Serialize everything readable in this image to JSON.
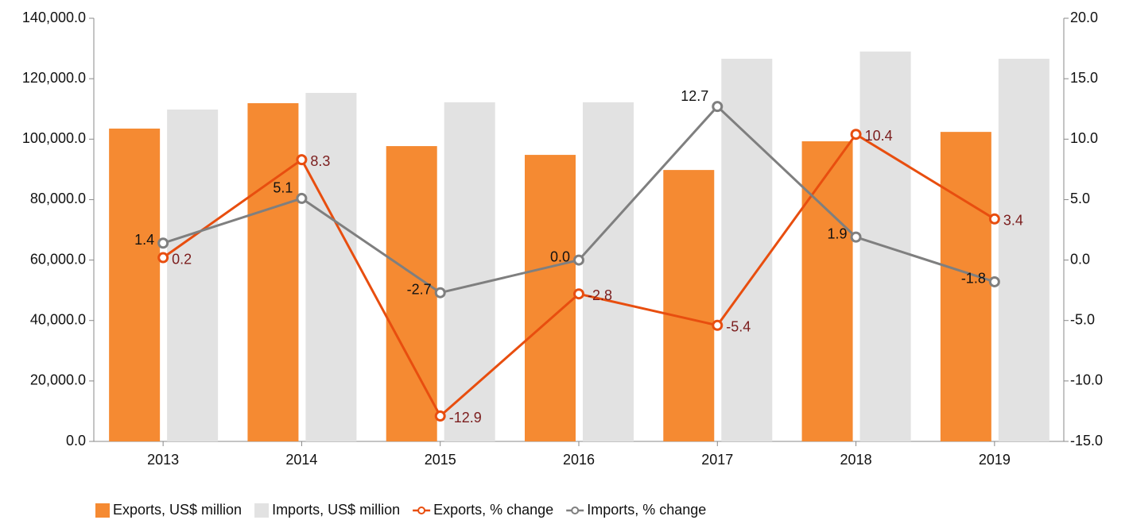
{
  "chart_data": {
    "type": "bar",
    "categories": [
      "2013",
      "2014",
      "2015",
      "2016",
      "2017",
      "2018",
      "2019"
    ],
    "series": [
      {
        "name": "Exports, US$ million",
        "type": "bar",
        "color": "#f58a32",
        "values": [
          103500,
          111900,
          97700,
          94800,
          89800,
          99300,
          102400
        ]
      },
      {
        "name": "Imports, US$ million",
        "type": "bar",
        "color": "#e2e2e2",
        "values": [
          109800,
          115300,
          112200,
          112200,
          126600,
          129000,
          126600
        ]
      },
      {
        "name": "Exports, % change",
        "type": "line",
        "axis": "y2",
        "color": "#e84e0f",
        "label_color": "#7b1d1d",
        "values": [
          0.2,
          8.3,
          -12.9,
          -2.8,
          -5.4,
          10.4,
          3.4
        ],
        "value_labels": [
          "0.2",
          "8.3",
          "-12.9",
          "-2.8",
          "-5.4",
          "10.4",
          "3.4"
        ]
      },
      {
        "name": "Imports, % change",
        "type": "line",
        "axis": "y2",
        "color": "#7f7f7f",
        "label_color": "#111111",
        "values": [
          1.4,
          5.1,
          -2.7,
          0.0,
          12.7,
          1.9,
          -1.8
        ],
        "value_labels": [
          "1.4",
          "5.1",
          "-2.7",
          "0.0",
          "12.7",
          "1.9",
          "-1.8"
        ]
      }
    ],
    "ylim": [
      0,
      140000
    ],
    "yticks": [
      {
        "value": 0,
        "label": "0.0"
      },
      {
        "value": 20000,
        "label": "20,000.0"
      },
      {
        "value": 40000,
        "label": "40,000.0"
      },
      {
        "value": 60000,
        "label": "60,000.0"
      },
      {
        "value": 80000,
        "label": "80,000.0"
      },
      {
        "value": 100000,
        "label": "100,000.0"
      },
      {
        "value": 120000,
        "label": "120,000.0"
      },
      {
        "value": 140000,
        "label": "140,000.0"
      }
    ],
    "y2lim": [
      -15,
      20
    ],
    "y2ticks": [
      {
        "value": -15,
        "label": "-15.0"
      },
      {
        "value": -10,
        "label": "-10.0"
      },
      {
        "value": -5,
        "label": "-5.0"
      },
      {
        "value": 0,
        "label": "0.0"
      },
      {
        "value": 5,
        "label": "5.0"
      },
      {
        "value": 10,
        "label": "10.0"
      },
      {
        "value": 15,
        "label": "15.0"
      },
      {
        "value": 20,
        "label": "20.0"
      }
    ],
    "legend": "bottom-left"
  }
}
